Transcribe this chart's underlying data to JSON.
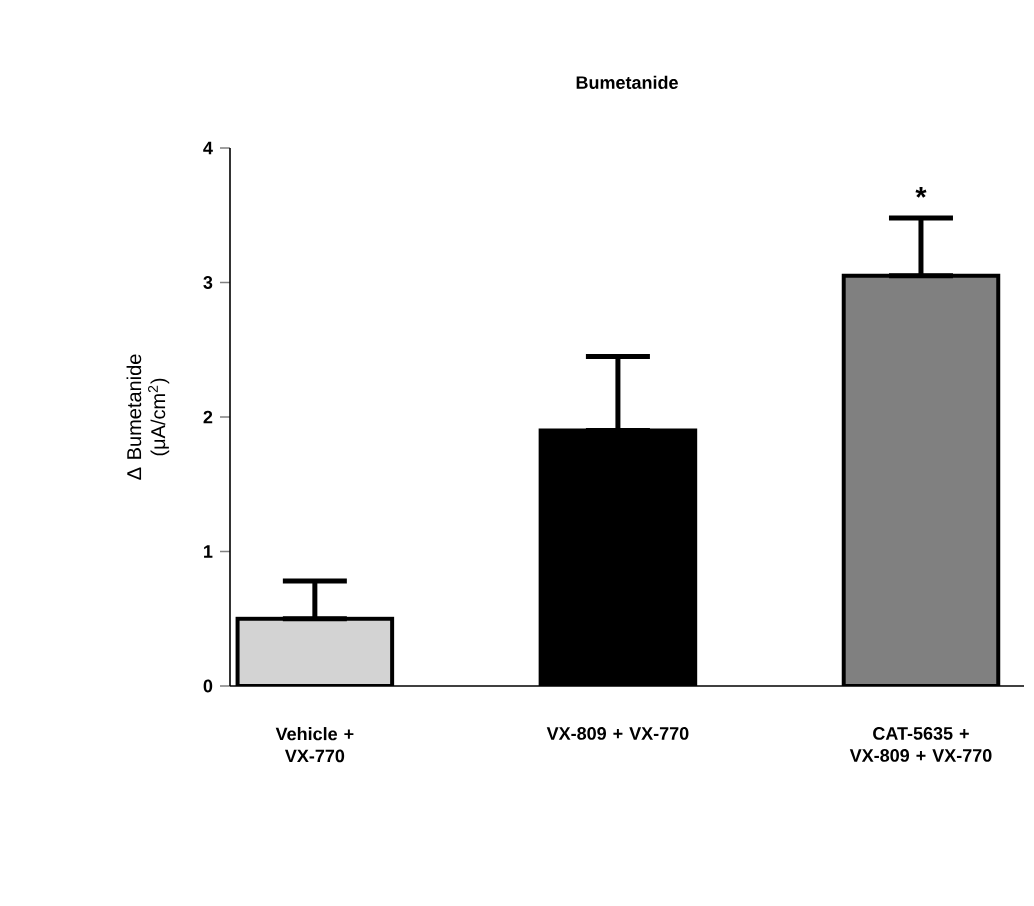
{
  "chart_data": {
    "type": "bar",
    "title": "Bumetanide",
    "ylabel": "Δ Bumetanide (μA/cm$^{2}$)",
    "categories": [
      "Vehicle + VX-770",
      "VX-809 + VX-770",
      "CAT-5635 + VX-809 + VX-770"
    ],
    "values": [
      0.5,
      1.9,
      3.05
    ],
    "colors": [
      "#d3d3d3",
      "#000000",
      "#808080"
    ],
    "errors": [
      [
        0.5,
        0.78
      ],
      [
        1.9,
        2.45
      ],
      [
        3.05,
        3.48
      ]
    ],
    "ylim": [
      0,
      4
    ],
    "yticks": [
      0,
      1,
      2,
      3,
      4
    ],
    "annotations": [
      "*"
    ],
    "grid": false
  }
}
